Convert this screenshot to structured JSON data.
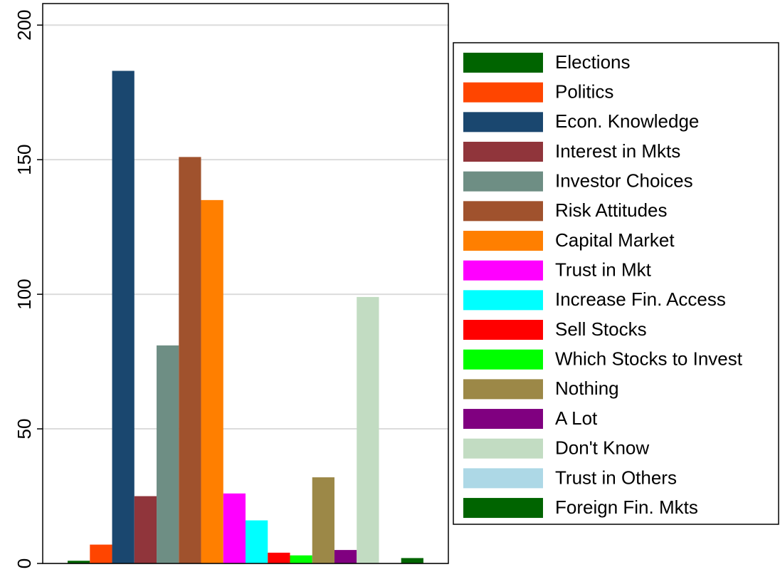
{
  "chart_data": {
    "type": "bar",
    "categories": [
      null
    ],
    "series": [
      {
        "name": "Elections",
        "color": "#006400",
        "values": [
          1
        ]
      },
      {
        "name": "Politics",
        "color": "#ff4500",
        "values": [
          7
        ]
      },
      {
        "name": "Econ. Knowledge",
        "color": "#1a476f",
        "values": [
          183
        ]
      },
      {
        "name": "Interest in Mkts",
        "color": "#90353b",
        "values": [
          25
        ]
      },
      {
        "name": "Investor Choices",
        "color": "#6e8e84",
        "values": [
          81
        ]
      },
      {
        "name": "Risk Attitudes",
        "color": "#a0522d",
        "values": [
          151
        ]
      },
      {
        "name": "Capital Market",
        "color": "#ff7f00",
        "values": [
          135
        ]
      },
      {
        "name": "Trust in Mkt",
        "color": "#ff00ff",
        "values": [
          26
        ]
      },
      {
        "name": "Increase Fin. Access",
        "color": "#00ffff",
        "values": [
          16
        ]
      },
      {
        "name": "Sell Stocks",
        "color": "#ff0000",
        "values": [
          4
        ]
      },
      {
        "name": "Which Stocks to Invest",
        "color": "#00ff00",
        "values": [
          3
        ]
      },
      {
        "name": "Nothing",
        "color": "#9c8847",
        "values": [
          32
        ]
      },
      {
        "name": "A Lot",
        "color": "#800080",
        "values": [
          5
        ]
      },
      {
        "name": "Don't Know",
        "color": "#c2dcc2",
        "values": [
          99
        ]
      },
      {
        "name": "Trust in Others",
        "color": "#add8e6",
        "values": [
          0
        ]
      },
      {
        "name": "Foreign Fin. Mkts",
        "color": "#006400",
        "values": [
          2
        ]
      }
    ],
    "ylim": [
      0,
      208
    ],
    "yticks": [
      0,
      50,
      100,
      150,
      200
    ],
    "grid": true,
    "legend": "right"
  }
}
